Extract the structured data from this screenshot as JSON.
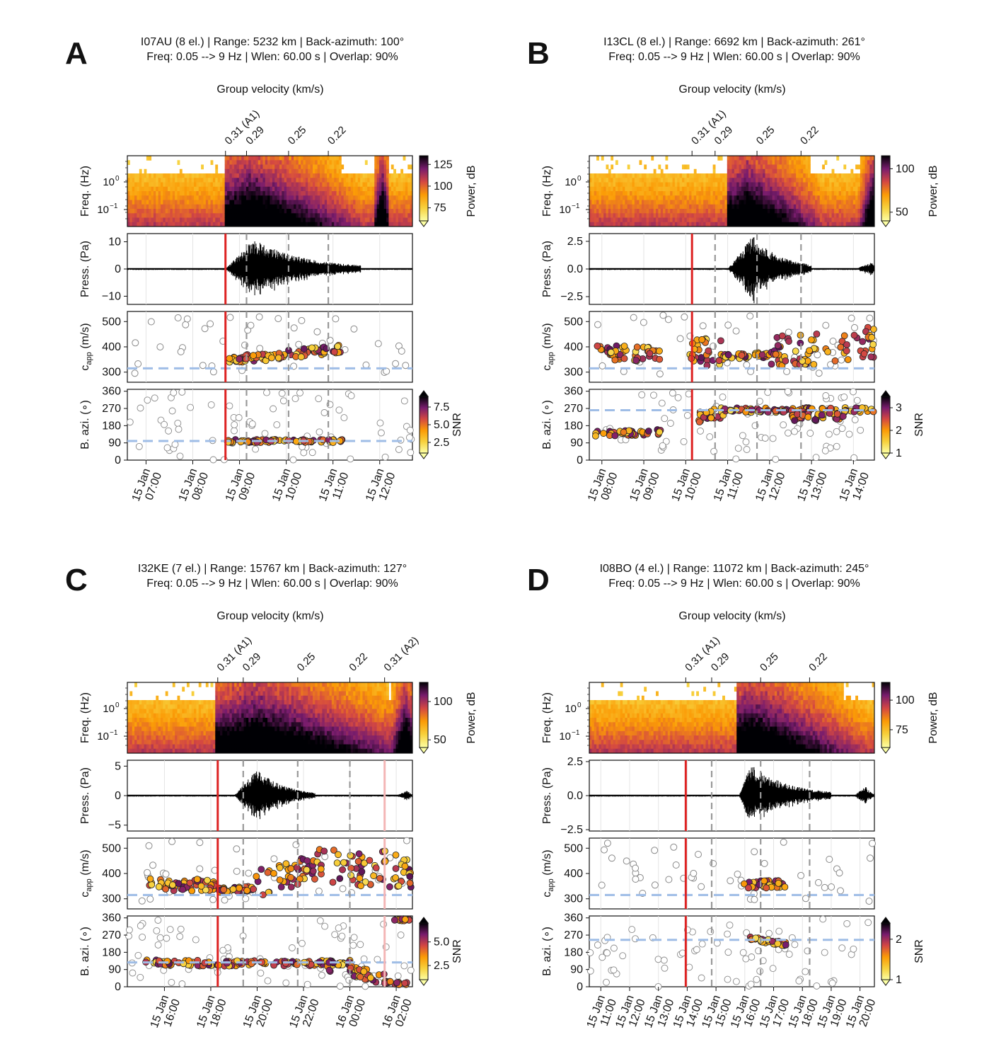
{
  "figure": {
    "common": {
      "vel_title": "Group velocity (km/s)",
      "ylabels": {
        "freq": "Freq. (Hz)",
        "press": "Press. (Pa)",
        "capp_main": "c",
        "capp_sub": "app",
        "capp_unit": " (m/s)",
        "bazi": "B. azi. (∘)"
      },
      "cbar_power_label": "Power, dB",
      "cbar_snr_label": "SNR",
      "freq_ticks": [
        {
          "text": "10",
          "sup": "0"
        },
        {
          "text": "10",
          "sup": "−1"
        }
      ]
    },
    "panels": [
      {
        "letter": "A",
        "title1": "I07AU (8 el.) | Range: 5232 km | Back-azimuth: 100°",
        "title2": "Freq: 0.05 --> 9 Hz | Wlen: 60.00 s | Overlap: 90%",
        "time_range": [
          6.6,
          12.7
        ],
        "time_ticks": [
          {
            "t": 7,
            "l1": "15 Jan",
            "l2": "07:00"
          },
          {
            "t": 8,
            "l1": "15 Jan",
            "l2": "08:00"
          },
          {
            "t": 9,
            "l1": "15 Jan",
            "l2": "09:00"
          },
          {
            "t": 10,
            "l1": "15 Jan",
            "l2": "10:00"
          },
          {
            "t": 11,
            "l1": "15 Jan",
            "l2": "11:00"
          },
          {
            "t": 12,
            "l1": "15 Jan",
            "l2": "12:00"
          }
        ],
        "vel_lines": [
          {
            "t": 8.7,
            "label": "0.31 (A1)",
            "red": true
          },
          {
            "t": 9.15,
            "label": "0.29",
            "red": false
          },
          {
            "t": 10.05,
            "label": "0.25",
            "red": false
          },
          {
            "t": 10.9,
            "label": "0.22",
            "red": false
          }
        ],
        "press_ticks": [
          {
            "v": 10,
            "l": "10"
          },
          {
            "v": 0,
            "l": "0"
          },
          {
            "v": -10,
            "l": "−10"
          }
        ],
        "press_range": [
          -13,
          13
        ],
        "power_ticks": [
          {
            "v": 125,
            "l": "125"
          },
          {
            "v": 100,
            "l": "100"
          },
          {
            "v": 75,
            "l": "75"
          }
        ],
        "power_range": [
          60,
          135
        ],
        "snr_ticks": [
          {
            "v": 7.5,
            "l": "7.5"
          },
          {
            "v": 5.0,
            "l": "5.0"
          },
          {
            "v": 2.5,
            "l": "2.5"
          }
        ],
        "snr_range": [
          1,
          9
        ],
        "capp_expected": 315,
        "bazi_expected": 100,
        "capp_clusters": [
          {
            "t0": 8.72,
            "t1": 9.55,
            "v0": 350,
            "v1": 360,
            "spread": 15
          },
          {
            "t0": 9.55,
            "t1": 11.2,
            "v0": 360,
            "v1": 390,
            "spread": 18
          }
        ],
        "bazi_clusters": [
          {
            "t0": 8.72,
            "t1": 11.2,
            "v0": 100,
            "v1": 100,
            "spread": 8
          }
        ],
        "signal": [
          {
            "t0": 8.7,
            "t1": 11.6,
            "peak": 9.3,
            "amp": 11
          }
        ],
        "spec_energy": [
          {
            "t0": 8.7,
            "t1": 11.6,
            "peak": 9.25
          },
          {
            "t0": 11.9,
            "t1": 12.2,
            "peak": 12.05
          }
        ]
      },
      {
        "letter": "B",
        "title1": "I13CL (8 el.) | Range: 6692 km | Back-azimuth: 261°",
        "title2": "Freq: 0.05 --> 9 Hz | Wlen: 60.00 s | Overlap: 90%",
        "time_range": [
          7.7,
          14.5
        ],
        "time_ticks": [
          {
            "t": 8,
            "l1": "15 Jan",
            "l2": "08:00"
          },
          {
            "t": 9,
            "l1": "15 Jan",
            "l2": "09:00"
          },
          {
            "t": 10,
            "l1": "15 Jan",
            "l2": "10:00"
          },
          {
            "t": 11,
            "l1": "15 Jan",
            "l2": "11:00"
          },
          {
            "t": 12,
            "l1": "15 Jan",
            "l2": "12:00"
          },
          {
            "t": 13,
            "l1": "15 Jan",
            "l2": "13:00"
          },
          {
            "t": 14,
            "l1": "15 Jan",
            "l2": "14:00"
          }
        ],
        "vel_lines": [
          {
            "t": 10.15,
            "label": "0.31 (A1)",
            "red": true
          },
          {
            "t": 10.7,
            "label": "0.29",
            "red": false
          },
          {
            "t": 11.7,
            "label": "0.25",
            "red": false
          },
          {
            "t": 12.75,
            "label": "0.22",
            "red": false
          }
        ],
        "press_ticks": [
          {
            "v": 2.5,
            "l": "2.5"
          },
          {
            "v": 0,
            "l": "0.0"
          },
          {
            "v": -2.5,
            "l": "−2.5"
          }
        ],
        "press_range": [
          -3.2,
          3.2
        ],
        "power_ticks": [
          {
            "v": 100,
            "l": "100"
          },
          {
            "v": 50,
            "l": "50"
          }
        ],
        "power_range": [
          40,
          115
        ],
        "snr_ticks": [
          {
            "v": 3,
            "l": "3"
          },
          {
            "v": 2,
            "l": "2"
          },
          {
            "v": 1,
            "l": "1"
          }
        ],
        "snr_range": [
          1,
          3.5
        ],
        "capp_expected": 315,
        "bazi_expected": 261,
        "capp_clusters": [
          {
            "t0": 7.8,
            "t1": 9.4,
            "v0": 380,
            "v1": 370,
            "spread": 30
          },
          {
            "t0": 10.1,
            "t1": 10.9,
            "v0": 380,
            "v1": 370,
            "spread": 60
          },
          {
            "t0": 10.9,
            "t1": 12.0,
            "v0": 365,
            "v1": 365,
            "spread": 12
          },
          {
            "t0": 12.0,
            "t1": 14.5,
            "v0": 375,
            "v1": 420,
            "spread": 65
          }
        ],
        "bazi_clusters": [
          {
            "t0": 7.8,
            "t1": 9.5,
            "v0": 135,
            "v1": 150,
            "spread": 15
          },
          {
            "t0": 10.3,
            "t1": 10.9,
            "v0": 220,
            "v1": 250,
            "spread": 30
          },
          {
            "t0": 10.9,
            "t1": 14.5,
            "v0": 262,
            "v1": 262,
            "spread": 12
          },
          {
            "t0": 12.5,
            "t1": 13.8,
            "v0": 230,
            "v1": 230,
            "spread": 25
          }
        ],
        "signal": [
          {
            "t0": 11.0,
            "t1": 13.0,
            "peak": 11.6,
            "amp": 3.0
          },
          {
            "t0": 14.0,
            "t1": 14.5,
            "peak": 14.45,
            "amp": 0.6
          }
        ],
        "spec_energy": [
          {
            "t0": 11.0,
            "t1": 13.2,
            "peak": 11.5
          },
          {
            "t0": 14.1,
            "t1": 14.5,
            "peak": 14.45
          }
        ]
      },
      {
        "letter": "C",
        "title1": "I32KE (7 el.) | Range: 15767 km | Back-azimuth: 127°",
        "title2": "Freq: 0.05 --> 9 Hz | Wlen: 60.00 s | Overlap: 90%",
        "time_range": [
          14.4,
          26.7
        ],
        "time_ticks": [
          {
            "t": 16,
            "l1": "15 Jan",
            "l2": "16:00"
          },
          {
            "t": 18,
            "l1": "15 Jan",
            "l2": "18:00"
          },
          {
            "t": 20,
            "l1": "15 Jan",
            "l2": "20:00"
          },
          {
            "t": 22,
            "l1": "15 Jan",
            "l2": "22:00"
          },
          {
            "t": 24,
            "l1": "16 Jan",
            "l2": "00:00"
          },
          {
            "t": 26,
            "l1": "16 Jan",
            "l2": "02:00"
          }
        ],
        "vel_lines": [
          {
            "t": 18.3,
            "label": "0.31 (A1)",
            "red": true
          },
          {
            "t": 19.4,
            "label": "0.29",
            "red": false
          },
          {
            "t": 21.75,
            "label": "0.25",
            "red": false
          },
          {
            "t": 24.0,
            "label": "0.22",
            "red": false
          },
          {
            "t": 25.5,
            "label": "0.31 (A2)",
            "red": true,
            "faint": true
          }
        ],
        "press_ticks": [
          {
            "v": 5,
            "l": "5"
          },
          {
            "v": 0,
            "l": "0"
          },
          {
            "v": -5,
            "l": "−5"
          }
        ],
        "press_range": [
          -6,
          6
        ],
        "power_ticks": [
          {
            "v": 100,
            "l": "100"
          },
          {
            "v": 50,
            "l": "50"
          }
        ],
        "power_range": [
          40,
          125
        ],
        "snr_ticks": [
          {
            "v": 5.0,
            "l": "5.0"
          },
          {
            "v": 2.5,
            "l": "2.5"
          }
        ],
        "snr_range": [
          1,
          7
        ],
        "capp_expected": 315,
        "bazi_expected": 127,
        "capp_clusters": [
          {
            "t0": 15.0,
            "t1": 18.2,
            "v0": 360,
            "v1": 350,
            "spread": 25
          },
          {
            "t0": 18.3,
            "t1": 19.8,
            "v0": 335,
            "v1": 340,
            "spread": 10
          },
          {
            "t0": 19.8,
            "t1": 22.5,
            "v0": 360,
            "v1": 420,
            "spread": 55
          },
          {
            "t0": 22.5,
            "t1": 26.7,
            "v0": 420,
            "v1": 420,
            "spread": 75
          }
        ],
        "bazi_clusters": [
          {
            "t0": 15.2,
            "t1": 18.3,
            "v0": 128,
            "v1": 122,
            "spread": 15
          },
          {
            "t0": 18.3,
            "t1": 24.0,
            "v0": 122,
            "v1": 125,
            "spread": 14
          },
          {
            "t0": 23.0,
            "t1": 25.5,
            "v0": 110,
            "v1": 40,
            "spread": 30
          },
          {
            "t0": 25.5,
            "t1": 26.6,
            "v0": 25,
            "v1": 15,
            "spread": 8
          },
          {
            "t0": 25.9,
            "t1": 26.6,
            "v0": 350,
            "v1": 350,
            "spread": 5
          }
        ],
        "signal": [
          {
            "t0": 19.0,
            "t1": 22.5,
            "peak": 20.0,
            "amp": 4.5
          },
          {
            "t0": 26.0,
            "t1": 26.7,
            "peak": 26.5,
            "amp": 0.9
          }
        ],
        "spec_energy": [
          {
            "t0": 18.2,
            "t1": 26.7,
            "peak": 20.0
          },
          {
            "t0": 25.8,
            "t1": 26.7,
            "peak": 26.4
          }
        ]
      },
      {
        "letter": "D",
        "title1": "I08BO (4 el.) | Range: 11072 km | Back-azimuth: 245°",
        "title2": "Freq: 0.05 --> 9 Hz | Wlen: 60.00 s | Overlap: 90%",
        "time_range": [
          10.6,
          20.5
        ],
        "time_ticks": [
          {
            "t": 11,
            "l1": "15 Jan",
            "l2": "11:00"
          },
          {
            "t": 12,
            "l1": "15 Jan",
            "l2": "12:00"
          },
          {
            "t": 13,
            "l1": "15 Jan",
            "l2": "13:00"
          },
          {
            "t": 14,
            "l1": "15 Jan",
            "l2": "14:00"
          },
          {
            "t": 15,
            "l1": "15 Jan",
            "l2": "15:00"
          },
          {
            "t": 16,
            "l1": "15 Jan",
            "l2": "16:00"
          },
          {
            "t": 17,
            "l1": "15 Jan",
            "l2": "17:00"
          },
          {
            "t": 18,
            "l1": "15 Jan",
            "l2": "18:00"
          },
          {
            "t": 19,
            "l1": "15 Jan",
            "l2": "19:00"
          },
          {
            "t": 20,
            "l1": "15 Jan",
            "l2": "20:00"
          }
        ],
        "vel_lines": [
          {
            "t": 13.95,
            "label": "0.31 (A1)",
            "red": true
          },
          {
            "t": 14.85,
            "label": "0.29",
            "red": false
          },
          {
            "t": 16.55,
            "label": "0.25",
            "red": false
          },
          {
            "t": 18.25,
            "label": "0.22",
            "red": false
          }
        ],
        "press_ticks": [
          {
            "v": 2.5,
            "l": "2.5"
          },
          {
            "v": 0,
            "l": "0.0"
          },
          {
            "v": -2.5,
            "l": "−2.5"
          }
        ],
        "press_range": [
          -2.6,
          2.6
        ],
        "power_ticks": [
          {
            "v": 100,
            "l": "100"
          },
          {
            "v": 75,
            "l": "75"
          }
        ],
        "power_range": [
          60,
          115
        ],
        "snr_ticks": [
          {
            "v": 2,
            "l": "2"
          },
          {
            "v": 1,
            "l": "1"
          }
        ],
        "snr_range": [
          1,
          2.4
        ],
        "capp_expected": 315,
        "bazi_expected": 245,
        "capp_clusters": [
          {
            "t0": 15.95,
            "t1": 17.5,
            "v0": 355,
            "v1": 360,
            "spread": 15
          }
        ],
        "bazi_clusters": [
          {
            "t0": 15.95,
            "t1": 17.5,
            "v0": 260,
            "v1": 220,
            "spread": 10
          }
        ],
        "signal": [
          {
            "t0": 15.8,
            "t1": 19.0,
            "peak": 16.2,
            "amp": 2.3
          },
          {
            "t0": 19.8,
            "t1": 20.5,
            "peak": 20.2,
            "amp": 0.7
          }
        ],
        "spec_energy": [
          {
            "t0": 15.7,
            "t1": 20.5,
            "peak": 16.2
          }
        ]
      }
    ]
  },
  "chart_data": [
    {
      "type": "scatter",
      "title": "I07AU (8 el.) | Range: 5232 km | Back-azimuth: 100°",
      "group_velocity_kms": [
        0.31,
        0.29,
        0.25,
        0.22
      ],
      "arrival_times_hours": [
        8.7,
        9.15,
        10.05,
        10.9
      ],
      "xlabel": "Group velocity (km/s)",
      "series": [
        {
          "name": "c_app (m/s)",
          "values": [
            355,
            360,
            375,
            390
          ]
        },
        {
          "name": "B. azi.",
          "values": [
            100,
            100,
            100,
            100
          ]
        }
      ],
      "press_ylim": [
        -13,
        13
      ],
      "capp_ylim": [
        260,
        540
      ],
      "bazi_ylim": [
        0,
        370
      ]
    },
    {
      "type": "scatter",
      "title": "I13CL (8 el.) | Range: 6692 km | Back-azimuth: 261°",
      "group_velocity_kms": [
        0.31,
        0.29,
        0.25,
        0.22
      ],
      "arrival_times_hours": [
        10.15,
        10.7,
        11.7,
        12.75
      ],
      "xlabel": "Group velocity (km/s)",
      "series": [
        {
          "name": "c_app (m/s)",
          "values": [
            380,
            365,
            365,
            420
          ]
        },
        {
          "name": "B. azi.",
          "values": [
            135,
            240,
            262,
            262
          ]
        }
      ],
      "press_ylim": [
        -3.2,
        3.2
      ],
      "capp_ylim": [
        260,
        540
      ],
      "bazi_ylim": [
        0,
        370
      ]
    },
    {
      "type": "scatter",
      "title": "I32KE (7 el.) | Range: 15767 km | Back-azimuth: 127°",
      "group_velocity_kms": [
        0.31,
        0.29,
        0.25,
        0.22,
        0.31
      ],
      "arrival_times_hours": [
        18.3,
        19.4,
        21.75,
        24.0,
        25.5
      ],
      "xlabel": "Group velocity (km/s)",
      "series": [
        {
          "name": "c_app (m/s)",
          "values": [
            350,
            335,
            390,
            420
          ]
        },
        {
          "name": "B. azi.",
          "values": [
            125,
            122,
            110,
            20
          ]
        }
      ],
      "press_ylim": [
        -6,
        6
      ],
      "capp_ylim": [
        260,
        540
      ],
      "bazi_ylim": [
        0,
        370
      ]
    },
    {
      "type": "scatter",
      "title": "I08BO (4 el.) | Range: 11072 km | Back-azimuth: 245°",
      "group_velocity_kms": [
        0.31,
        0.29,
        0.25,
        0.22
      ],
      "arrival_times_hours": [
        13.95,
        14.85,
        16.55,
        18.25
      ],
      "xlabel": "Group velocity (km/s)",
      "series": [
        {
          "name": "c_app (m/s)",
          "values": [
            355,
            360
          ]
        },
        {
          "name": "B. azi.",
          "values": [
            260,
            220
          ]
        }
      ],
      "press_ylim": [
        -2.6,
        2.6
      ],
      "capp_ylim": [
        260,
        540
      ],
      "bazi_ylim": [
        0,
        370
      ]
    }
  ]
}
